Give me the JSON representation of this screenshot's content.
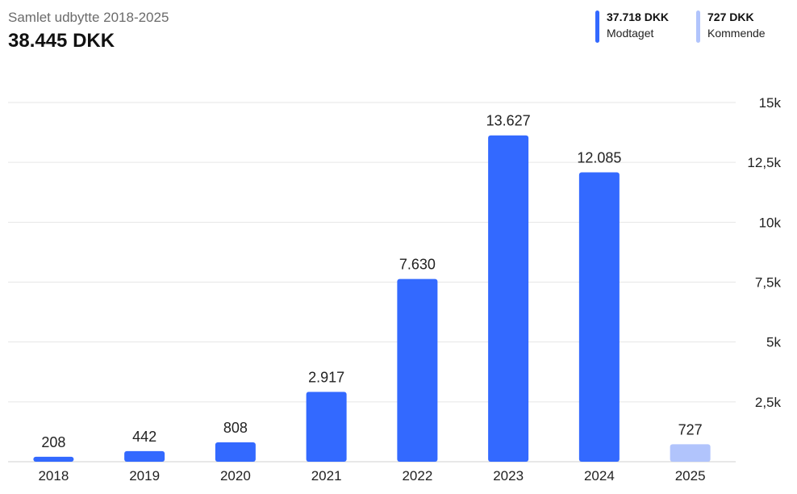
{
  "header": {
    "subtitle": "Samlet udbytte 2018-2025",
    "total": "38.445 DKK"
  },
  "legend": [
    {
      "value": "37.718 DKK",
      "label": "Modtaget",
      "color": "#3369ff"
    },
    {
      "value": "727 DKK",
      "label": "Kommende",
      "color": "#b1c4fc"
    }
  ],
  "chart_data": {
    "type": "bar",
    "categories": [
      "2018",
      "2019",
      "2020",
      "2021",
      "2022",
      "2023",
      "2024",
      "2025"
    ],
    "values": [
      208,
      442,
      808,
      2917,
      7630,
      13627,
      12085,
      727
    ],
    "value_labels": [
      "208",
      "442",
      "808",
      "2.917",
      "7.630",
      "13.627",
      "12.085",
      "727"
    ],
    "status": [
      "Modtaget",
      "Modtaget",
      "Modtaget",
      "Modtaget",
      "Modtaget",
      "Modtaget",
      "Modtaget",
      "Kommende"
    ],
    "ylim": [
      0,
      15000
    ],
    "yticks": [
      2500,
      5000,
      7500,
      10000,
      12500,
      15000
    ],
    "ytick_labels": [
      "2,5k",
      "5k",
      "7,5k",
      "10k",
      "12,5k",
      "15k"
    ],
    "grid": true,
    "y_axis_position": "right",
    "colors": {
      "received": "#3369ff",
      "upcoming": "#b1c4fc",
      "grid": "#e6e6e6"
    }
  }
}
